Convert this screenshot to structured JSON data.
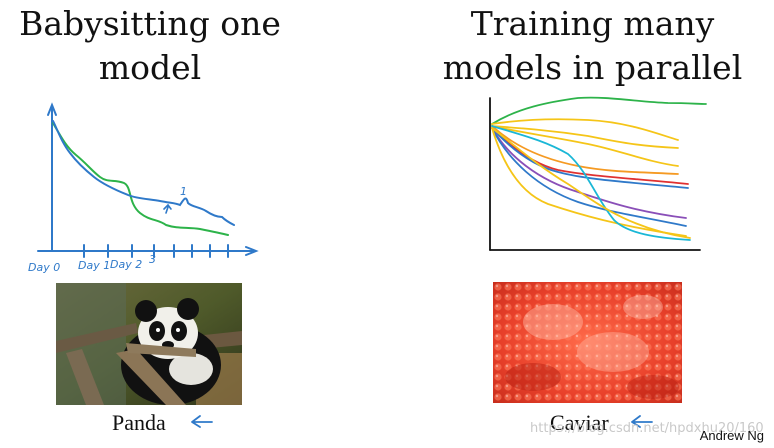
{
  "left": {
    "title_line1": "Babysitting one",
    "title_line2": "model",
    "tick_labels": [
      "Day 0",
      "Day 1",
      "Day 2",
      "3"
    ],
    "caption": "Panda"
  },
  "right": {
    "title_line1": "Training many",
    "title_line2": "models in parallel",
    "caption": "Caviar"
  },
  "credit": "Andrew Ng",
  "watermark": "https://blog.csdn.net/hpdxhu20/160",
  "colors": {
    "axis": "#2f79c9",
    "blue": "#2f79c9",
    "green": "#2db34a",
    "yellow": "#f5c518",
    "orange": "#f59a23",
    "red": "#e03131",
    "purple": "#8a4fb8",
    "cyan": "#1ab7d6"
  }
}
